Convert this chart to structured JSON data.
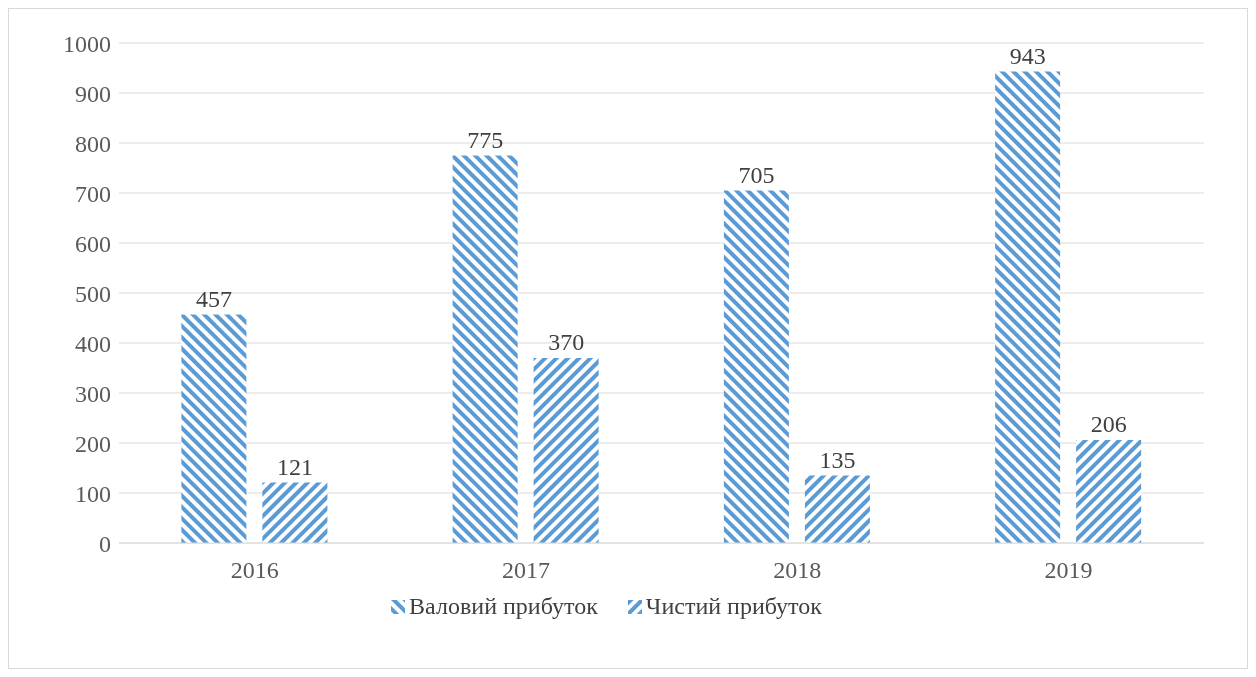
{
  "chart_data": {
    "type": "bar",
    "categories": [
      "2016",
      "2017",
      "2018",
      "2019"
    ],
    "series": [
      {
        "name": "Валовий прибуток",
        "color": "#5b9bd5",
        "values": [
          457,
          775,
          705,
          943
        ]
      },
      {
        "name": "Чистий прибуток",
        "color": "#5b9bd5",
        "values": [
          121,
          370,
          135,
          206
        ]
      }
    ],
    "ylim": [
      0,
      1000
    ],
    "yticks": [
      0,
      100,
      200,
      300,
      400,
      500,
      600,
      700,
      800,
      900,
      1000
    ],
    "grid": "y",
    "legend": "bottom",
    "data_labels": true
  }
}
